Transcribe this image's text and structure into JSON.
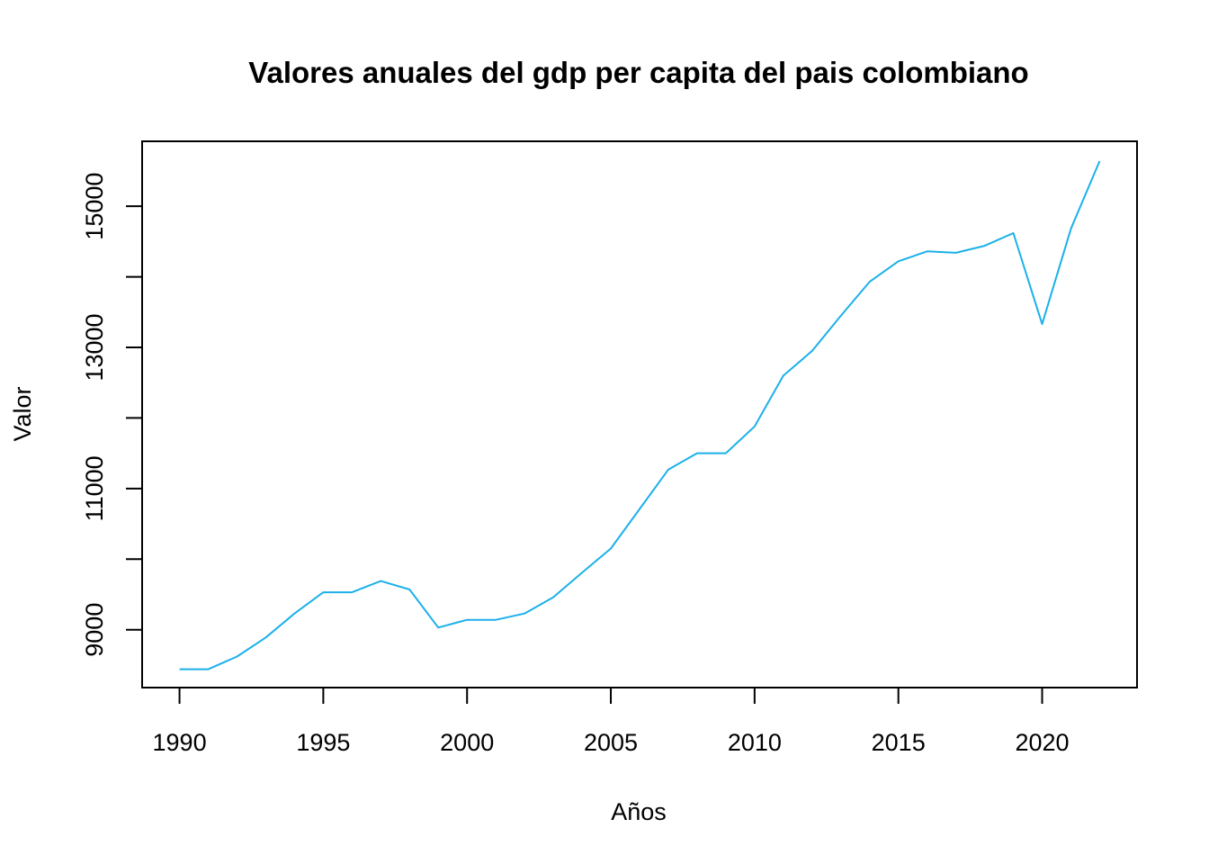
{
  "chart_data": {
    "type": "line",
    "title": "Valores anuales del gdp per capita del pais colombiano",
    "xlabel": "Años",
    "ylabel": "Valor",
    "xlim": [
      1988.7,
      2023.3
    ],
    "ylim": [
      8180,
      15920
    ],
    "xticks": [
      1990,
      1995,
      2000,
      2005,
      2010,
      2015,
      2020
    ],
    "yticks": [
      9000,
      11000,
      13000,
      15000
    ],
    "grid": false,
    "legend": "none",
    "line_color": "#1BB0EA",
    "x": [
      1990,
      1991,
      1992,
      1993,
      1994,
      1995,
      1996,
      1997,
      1998,
      1999,
      2000,
      2001,
      2002,
      2003,
      2004,
      2005,
      2006,
      2007,
      2008,
      2009,
      2010,
      2011,
      2012,
      2013,
      2014,
      2015,
      2016,
      2017,
      2018,
      2019,
      2020,
      2021,
      2022
    ],
    "series": [
      {
        "values": [
          8440,
          8440,
          8620,
          8890,
          9230,
          9530,
          9530,
          9690,
          9570,
          9030,
          9140,
          9140,
          9230,
          9460,
          9810,
          10150,
          10710,
          11270,
          11500,
          11500,
          11880,
          12600,
          12950,
          13450,
          13930,
          14220,
          14360,
          14340,
          14440,
          14620,
          13330,
          14680,
          15640
        ]
      }
    ]
  }
}
